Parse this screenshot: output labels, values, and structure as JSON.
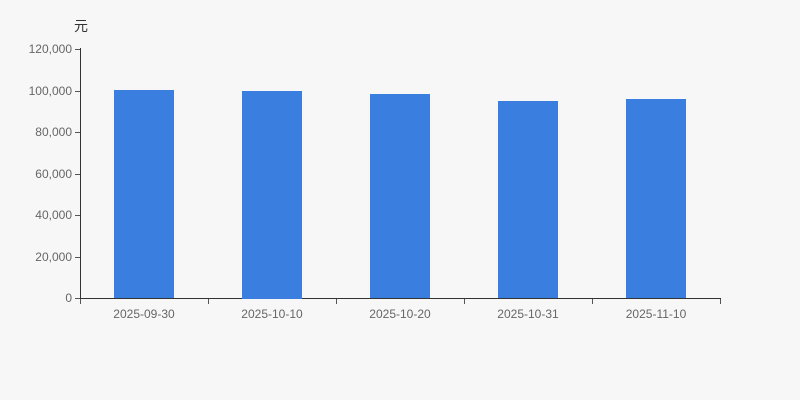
{
  "chart_data": {
    "type": "bar",
    "categories": [
      "2025-09-30",
      "2025-10-10",
      "2025-10-20",
      "2025-10-31",
      "2025-11-10"
    ],
    "values": [
      100400,
      100000,
      98500,
      95000,
      96000
    ],
    "title": "",
    "xlabel": "",
    "ylabel": "元",
    "ylim": [
      0,
      120000
    ],
    "yticks": [
      0,
      20000,
      40000,
      60000,
      80000,
      100000,
      120000
    ],
    "grid": false,
    "legend": null
  },
  "colors": {
    "bar": "#3a7fe0",
    "background": "#f7f7f7",
    "axis_line": "#333333",
    "tick_label": "#666666"
  }
}
